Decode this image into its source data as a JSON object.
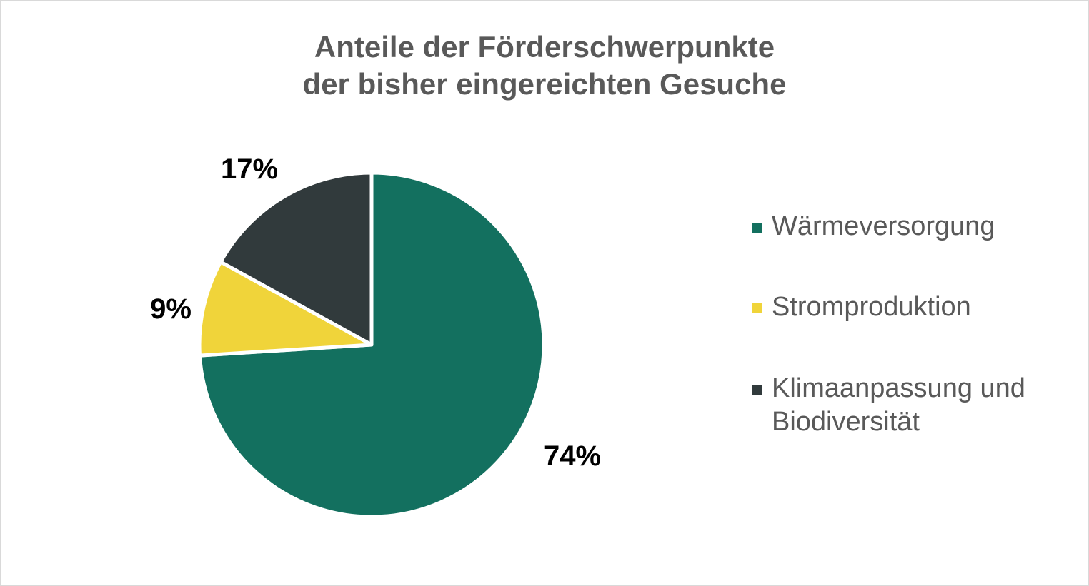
{
  "chart_data": {
    "type": "pie",
    "title_lines": [
      "Anteile der Förderschwerpunkte",
      "der bisher eingereichten Gesuche"
    ],
    "categories": [
      "Wärmeversorgung",
      "Stromproduktion",
      "Klimaanpassung und Biodiversität"
    ],
    "values": [
      74,
      9,
      17
    ],
    "labels": [
      "74%",
      "9%",
      "17%"
    ],
    "colors": [
      "#13705f",
      "#f0d43a",
      "#313a3c"
    ],
    "legend_position": "right",
    "start": "12 o'clock",
    "direction": "clockwise"
  }
}
